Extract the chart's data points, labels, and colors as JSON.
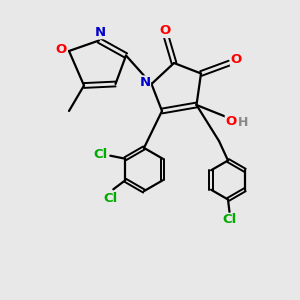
{
  "background_color": "#e8e8e8",
  "bond_color": "#000000",
  "atom_colors": {
    "O": "#ff0000",
    "N": "#0000cc",
    "Cl": "#00aa00",
    "H": "#888888",
    "C": "#000000"
  },
  "figsize": [
    3.0,
    3.0
  ],
  "dpi": 100,
  "lw_single": 1.6,
  "lw_double": 1.4,
  "double_sep": 0.08,
  "font_size": 9.5
}
